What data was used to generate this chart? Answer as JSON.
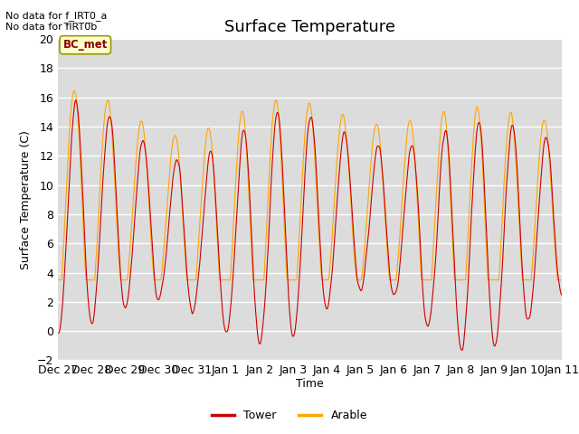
{
  "title": "Surface Temperature",
  "xlabel": "Time",
  "ylabel": "Surface Temperature (C)",
  "ylim": [
    -2,
    20
  ],
  "yticks": [
    -2,
    0,
    2,
    4,
    6,
    8,
    10,
    12,
    14,
    16,
    18,
    20
  ],
  "xtick_labels": [
    "Dec 27",
    "Dec 28",
    "Dec 29",
    "Dec 30",
    "Dec 31",
    "Jan 1",
    "Jan 2",
    "Jan 3",
    "Jan 4",
    "Jan 5",
    "Jan 6",
    "Jan 7",
    "Jan 8",
    "Jan 9",
    "Jan 10",
    "Jan 11"
  ],
  "text_nodata_1": "No data for f_IRT0_a",
  "text_nodata_2": "No data for f̅IRT0̅b",
  "annotation_box": "BC_met",
  "tower_color": "#cc0000",
  "arable_color": "#ffa500",
  "legend_label_tower": "Tower",
  "legend_label_arable": "Arable",
  "bg_color": "#dcdcdc",
  "title_fontsize": 13,
  "axis_label_fontsize": 9,
  "tick_fontsize": 9,
  "n_days": 15,
  "n_pts": 1440
}
